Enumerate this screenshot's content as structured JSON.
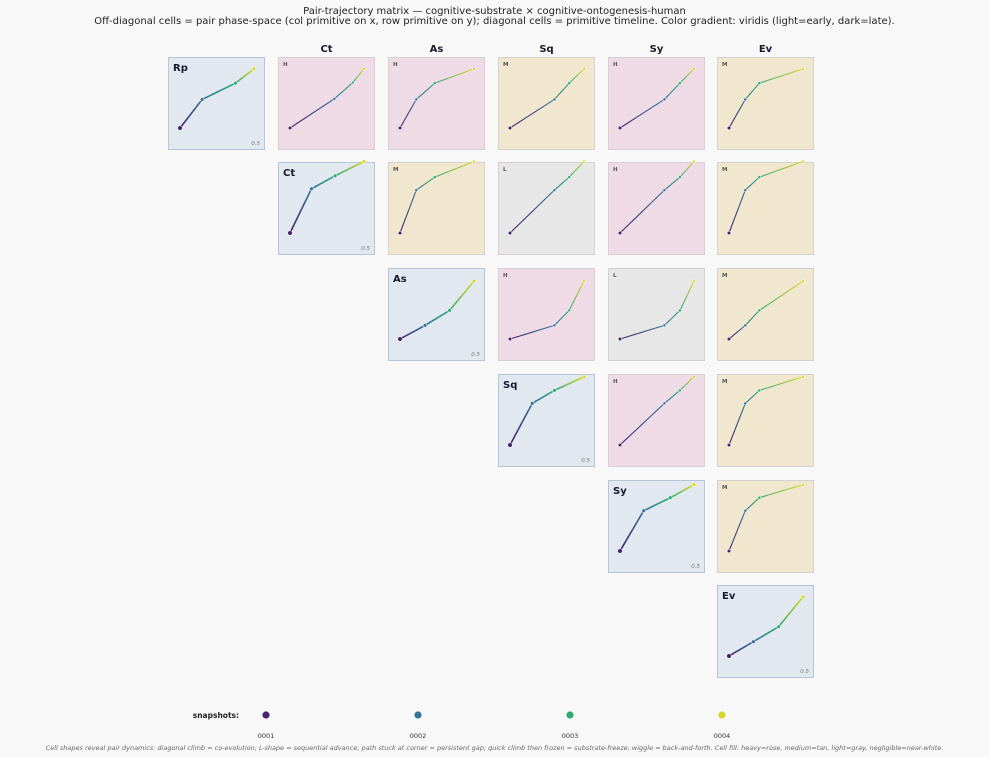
{
  "header": {
    "title": "Pair-trajectory matrix — cognitive-substrate × cognitive-ontogenesis-human",
    "subtitle": "Off-diagonal cells = pair phase-space (col primitive on x, row primitive on y); diagonal cells = primitive timeline. Color gradient: viridis (light=early, dark=late)."
  },
  "legend": {
    "label": "snapshots:",
    "items": [
      "0001",
      "0002",
      "0003",
      "0004"
    ],
    "colors": [
      "#46226f",
      "#35729a",
      "#2eaa77",
      "#d7d829"
    ]
  },
  "footer": {
    "caption": "Cell shapes reveal pair dynamics: diagonal climb = co-evolution; L-shape = sequential advance; path stuck at corner = persistent gap; quick climb then frozen = substrate-freeze; wiggle = back-and-forth. Cell fill: heavy=rose, medium=tan, light=gray, negligible=near-white."
  },
  "colors": {
    "heavy": "#efdbe6",
    "medium": "#f1e7cf",
    "light": "#e7e7e7",
    "diagonal": "#e1e8f0",
    "diagonal_border": "#b8c4d8",
    "cell_border": "#d6d0d3"
  },
  "chart_data": {
    "type": "scatter",
    "primitives": [
      "Rp",
      "Ct",
      "As",
      "Sq",
      "Sy",
      "Ev"
    ],
    "columns": [
      "Ct",
      "As",
      "Sq",
      "Sy",
      "Ev"
    ],
    "snapshots": [
      "0001",
      "0002",
      "0003",
      "0004"
    ],
    "diagonal_scale_label": "0.5",
    "cells": [
      {
        "row": "Rp",
        "col": "Rp",
        "kind": "diagonal",
        "label": "Rp",
        "points": [
          [
            0.0,
            0.0
          ],
          [
            0.3,
            0.44
          ],
          [
            0.75,
            0.69
          ],
          [
            1.0,
            0.91
          ]
        ]
      },
      {
        "row": "Rp",
        "col": "Ct",
        "kind": "pair",
        "weight": "heavy",
        "tag": "H",
        "points": [
          [
            0.0,
            0.0
          ],
          [
            0.6,
            0.45
          ],
          [
            0.85,
            0.7
          ],
          [
            1.0,
            0.91
          ]
        ]
      },
      {
        "row": "Rp",
        "col": "As",
        "kind": "pair",
        "weight": "heavy",
        "tag": "H",
        "points": [
          [
            0.0,
            0.0
          ],
          [
            0.22,
            0.44
          ],
          [
            0.47,
            0.69
          ],
          [
            1.0,
            0.91
          ]
        ]
      },
      {
        "row": "Rp",
        "col": "Sq",
        "kind": "pair",
        "weight": "medium",
        "tag": "M",
        "points": [
          [
            0.0,
            0.0
          ],
          [
            0.6,
            0.44
          ],
          [
            0.8,
            0.69
          ],
          [
            1.0,
            0.91
          ]
        ]
      },
      {
        "row": "Rp",
        "col": "Sy",
        "kind": "pair",
        "weight": "heavy",
        "tag": "H",
        "points": [
          [
            0.0,
            0.0
          ],
          [
            0.6,
            0.44
          ],
          [
            0.81,
            0.69
          ],
          [
            1.0,
            0.91
          ]
        ]
      },
      {
        "row": "Rp",
        "col": "Ev",
        "kind": "pair",
        "weight": "medium",
        "tag": "M",
        "points": [
          [
            0.0,
            0.0
          ],
          [
            0.22,
            0.44
          ],
          [
            0.41,
            0.69
          ],
          [
            1.0,
            0.91
          ]
        ]
      },
      {
        "row": "Ct",
        "col": "Ct",
        "kind": "diagonal",
        "label": "Ct",
        "points": [
          [
            0.0,
            0.0
          ],
          [
            0.29,
            0.68
          ],
          [
            0.61,
            0.88
          ],
          [
            1.0,
            1.1
          ]
        ]
      },
      {
        "row": "Ct",
        "col": "As",
        "kind": "pair",
        "weight": "medium",
        "tag": "M",
        "points": [
          [
            0.0,
            0.0
          ],
          [
            0.22,
            0.66
          ],
          [
            0.47,
            0.86
          ],
          [
            1.0,
            1.1
          ]
        ]
      },
      {
        "row": "Ct",
        "col": "Sq",
        "kind": "pair",
        "weight": "light",
        "tag": "L",
        "points": [
          [
            0.0,
            0.0
          ],
          [
            0.6,
            0.66
          ],
          [
            0.8,
            0.86
          ],
          [
            1.0,
            1.1
          ]
        ]
      },
      {
        "row": "Ct",
        "col": "Sy",
        "kind": "pair",
        "weight": "heavy",
        "tag": "H",
        "points": [
          [
            0.0,
            0.0
          ],
          [
            0.6,
            0.66
          ],
          [
            0.81,
            0.86
          ],
          [
            1.0,
            1.1
          ]
        ]
      },
      {
        "row": "Ct",
        "col": "Ev",
        "kind": "pair",
        "weight": "medium",
        "tag": "M",
        "points": [
          [
            0.0,
            0.0
          ],
          [
            0.22,
            0.66
          ],
          [
            0.41,
            0.86
          ],
          [
            1.0,
            1.1
          ]
        ]
      },
      {
        "row": "As",
        "col": "As",
        "kind": "diagonal",
        "label": "As",
        "points": [
          [
            0.0,
            0.0
          ],
          [
            0.34,
            0.21
          ],
          [
            0.67,
            0.44
          ],
          [
            1.0,
            0.89
          ]
        ]
      },
      {
        "row": "As",
        "col": "Sq",
        "kind": "pair",
        "weight": "heavy",
        "tag": "H",
        "points": [
          [
            0.0,
            0.0
          ],
          [
            0.6,
            0.21
          ],
          [
            0.8,
            0.44
          ],
          [
            1.0,
            0.89
          ]
        ]
      },
      {
        "row": "As",
        "col": "Sy",
        "kind": "pair",
        "weight": "light",
        "tag": "L",
        "points": [
          [
            0.0,
            0.0
          ],
          [
            0.6,
            0.21
          ],
          [
            0.81,
            0.44
          ],
          [
            1.0,
            0.89
          ]
        ]
      },
      {
        "row": "As",
        "col": "Ev",
        "kind": "pair",
        "weight": "medium",
        "tag": "M",
        "points": [
          [
            0.0,
            0.0
          ],
          [
            0.22,
            0.21
          ],
          [
            0.41,
            0.44
          ],
          [
            1.0,
            0.89
          ]
        ]
      },
      {
        "row": "Sq",
        "col": "Sq",
        "kind": "diagonal",
        "label": "Sq",
        "points": [
          [
            0.0,
            0.0
          ],
          [
            0.3,
            0.64
          ],
          [
            0.6,
            0.84
          ],
          [
            1.0,
            1.05
          ]
        ]
      },
      {
        "row": "Sq",
        "col": "Sy",
        "kind": "pair",
        "weight": "heavy",
        "tag": "H",
        "points": [
          [
            0.0,
            0.0
          ],
          [
            0.6,
            0.64
          ],
          [
            0.81,
            0.84
          ],
          [
            1.0,
            1.05
          ]
        ]
      },
      {
        "row": "Sq",
        "col": "Ev",
        "kind": "pair",
        "weight": "medium",
        "tag": "M",
        "points": [
          [
            0.0,
            0.0
          ],
          [
            0.22,
            0.64
          ],
          [
            0.41,
            0.84
          ],
          [
            1.0,
            1.05
          ]
        ]
      },
      {
        "row": "Sy",
        "col": "Sy",
        "kind": "diagonal",
        "label": "Sy",
        "points": [
          [
            0.0,
            0.0
          ],
          [
            0.32,
            0.62
          ],
          [
            0.68,
            0.82
          ],
          [
            1.0,
            1.02
          ]
        ]
      },
      {
        "row": "Sy",
        "col": "Ev",
        "kind": "pair",
        "weight": "medium",
        "tag": "M",
        "points": [
          [
            0.0,
            0.0
          ],
          [
            0.22,
            0.62
          ],
          [
            0.41,
            0.82
          ],
          [
            1.0,
            1.02
          ]
        ]
      },
      {
        "row": "Ev",
        "col": "Ev",
        "kind": "diagonal",
        "label": "Ev",
        "points": [
          [
            0.0,
            0.0
          ],
          [
            0.33,
            0.22
          ],
          [
            0.67,
            0.45
          ],
          [
            1.0,
            0.91
          ]
        ]
      }
    ]
  }
}
